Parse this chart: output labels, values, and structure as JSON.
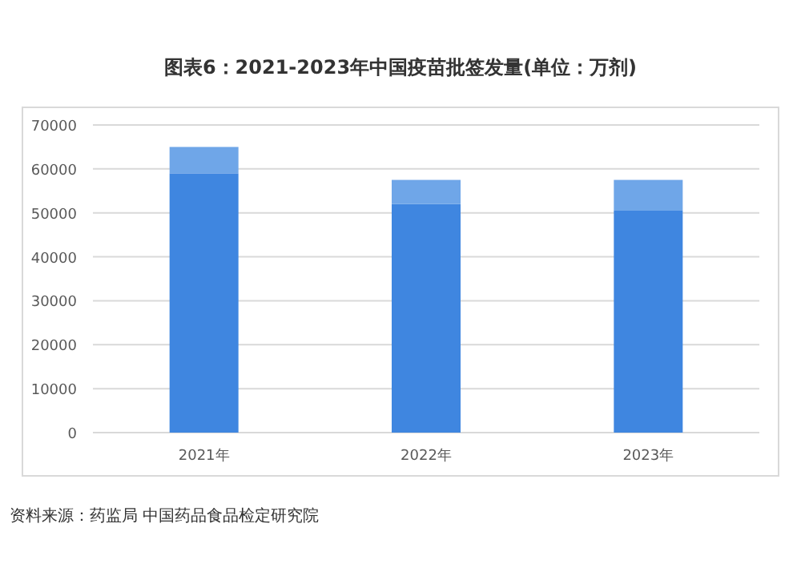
{
  "chart_data": {
    "type": "bar",
    "title": "图表6：2021-2023年中国疫苗批签发量(单位：万剂)",
    "categories": [
      "2021年",
      "2022年",
      "2023年"
    ],
    "stacked": true,
    "series": [
      {
        "color": "#3f86e0",
        "values": [
          59000,
          52000,
          50500
        ]
      },
      {
        "color": "#6fa6e8",
        "values": [
          6000,
          5500,
          7000
        ]
      }
    ],
    "ylim": [
      0,
      70000
    ],
    "yticks": [
      0,
      10000,
      20000,
      30000,
      40000,
      50000,
      60000,
      70000
    ],
    "grid": "y",
    "annotations": [
      "资料来源：药监局 中国药品食品检定研究院"
    ]
  }
}
